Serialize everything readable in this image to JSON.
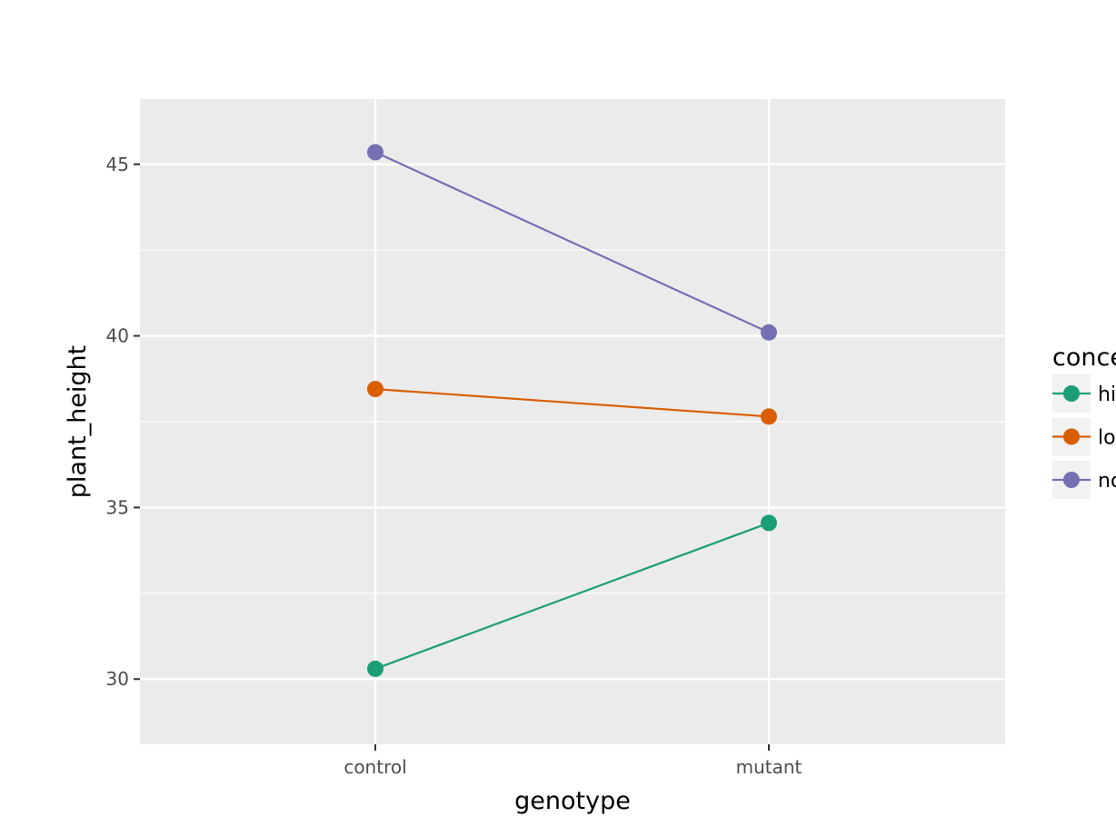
{
  "chart_data": {
    "type": "line",
    "xlabel": "genotype",
    "ylabel": "plant_height",
    "categories": [
      "control",
      "mutant"
    ],
    "ylim": [
      28.1,
      46.9
    ],
    "yticks": [
      30,
      35,
      40,
      45
    ],
    "grid": true,
    "legend": {
      "title": "conce",
      "position": "right",
      "labels": [
        "hi",
        "lo",
        "no"
      ]
    },
    "series": [
      {
        "key": "high",
        "values": [
          30.3,
          34.55
        ],
        "color": "#1b9e77"
      },
      {
        "key": "low",
        "values": [
          38.45,
          37.65
        ],
        "color": "#d95f02"
      },
      {
        "key": "none",
        "values": [
          45.35,
          40.1
        ],
        "color": "#7570b3"
      }
    ]
  }
}
